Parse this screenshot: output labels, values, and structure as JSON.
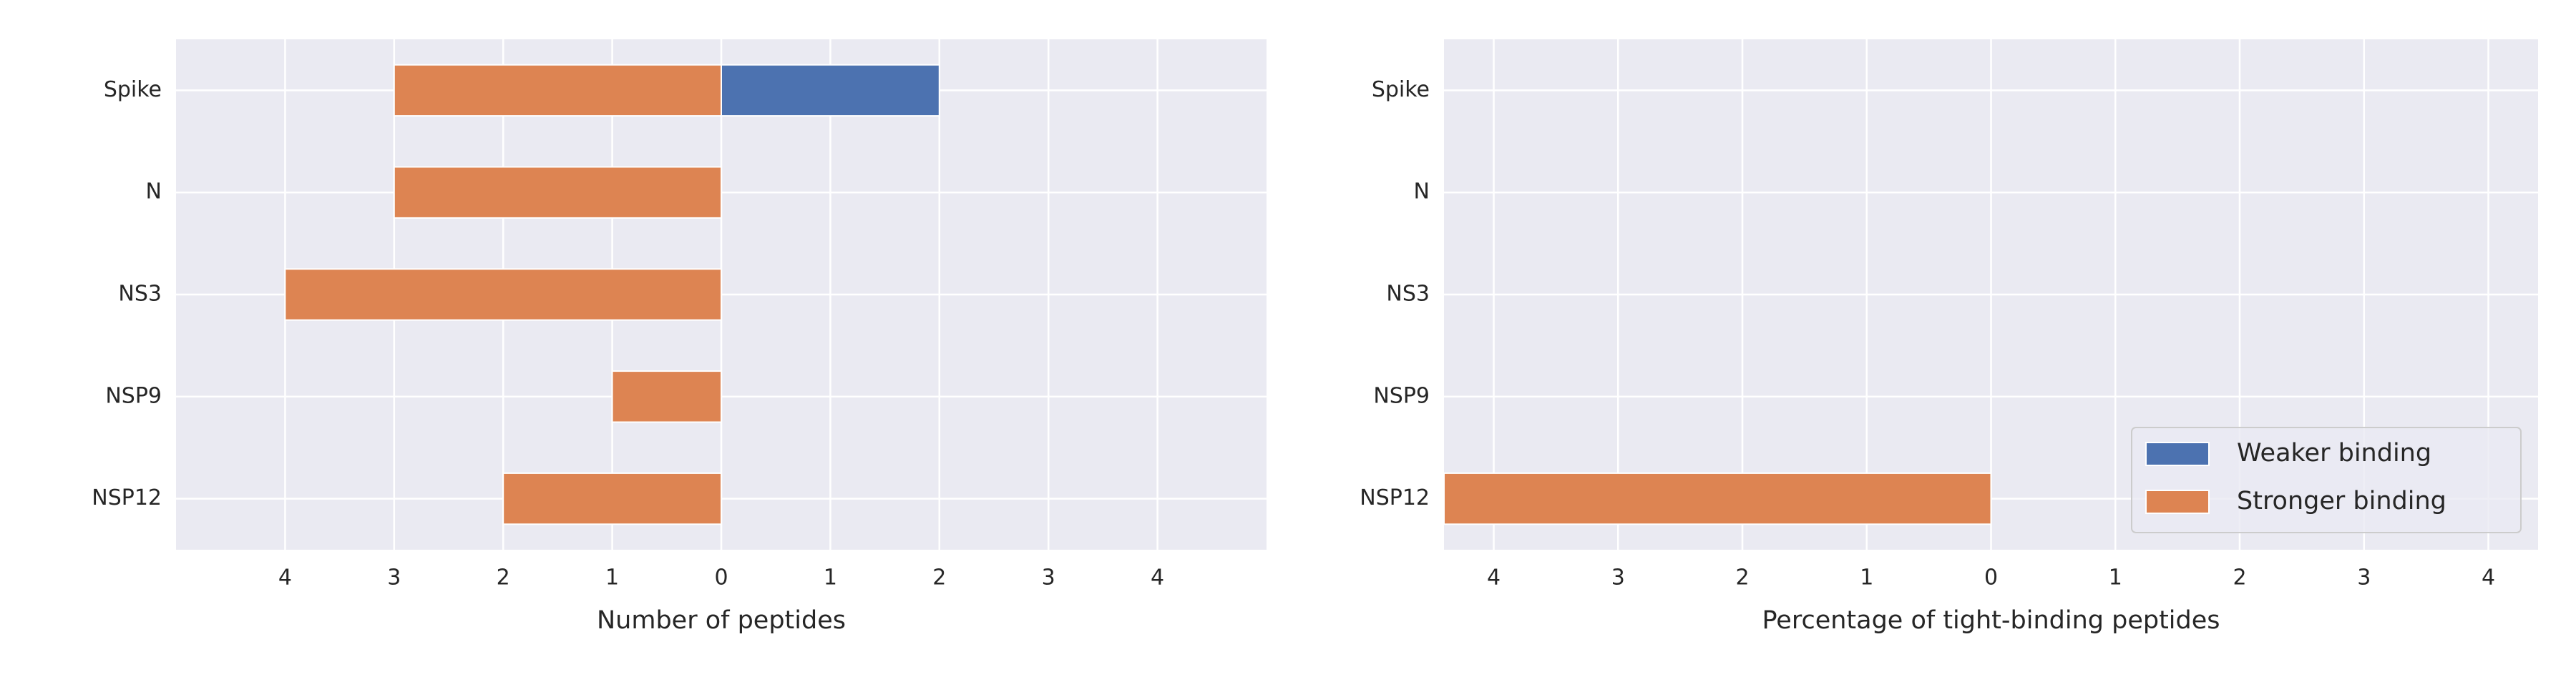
{
  "chart_data": [
    {
      "type": "bar",
      "orientation": "horizontal",
      "xlabel": "Number of peptides",
      "categories": [
        "Spike",
        "N",
        "NS3",
        "NSP9",
        "NSP12"
      ],
      "series": [
        {
          "color": "#4c72b0",
          "values": [
            2,
            0,
            0,
            0,
            0
          ]
        },
        {
          "color": "#dd8452",
          "values": [
            -3,
            -3,
            -4,
            -1,
            -2
          ]
        }
      ],
      "xlim": [
        -5,
        5
      ],
      "xticks": [
        {
          "value": -4,
          "label": "4"
        },
        {
          "value": -3,
          "label": "3"
        },
        {
          "value": -2,
          "label": "2"
        },
        {
          "value": -1,
          "label": "1"
        },
        0,
        1,
        2,
        3,
        4
      ],
      "grid": true
    },
    {
      "type": "bar",
      "orientation": "horizontal",
      "xlabel": "Percentage of tight-binding peptides",
      "categories": [
        "Spike",
        "N",
        "NS3",
        "NSP9",
        "NSP12"
      ],
      "series": [
        {
          "name": "Weaker binding",
          "color": "#4c72b0",
          "values": [
            0,
            0,
            0,
            0,
            0
          ]
        },
        {
          "name": "Stronger binding",
          "color": "#dd8452",
          "values": [
            0,
            0,
            0,
            0,
            -4.4
          ]
        }
      ],
      "xlim": [
        -4.4,
        4.4
      ],
      "xticks": [
        {
          "value": -4,
          "label": "4"
        },
        {
          "value": -3,
          "label": "3"
        },
        {
          "value": -2,
          "label": "2"
        },
        {
          "value": -1,
          "label": "1"
        },
        0,
        1,
        2,
        3,
        4
      ],
      "grid": true,
      "legend": "lower right"
    }
  ]
}
